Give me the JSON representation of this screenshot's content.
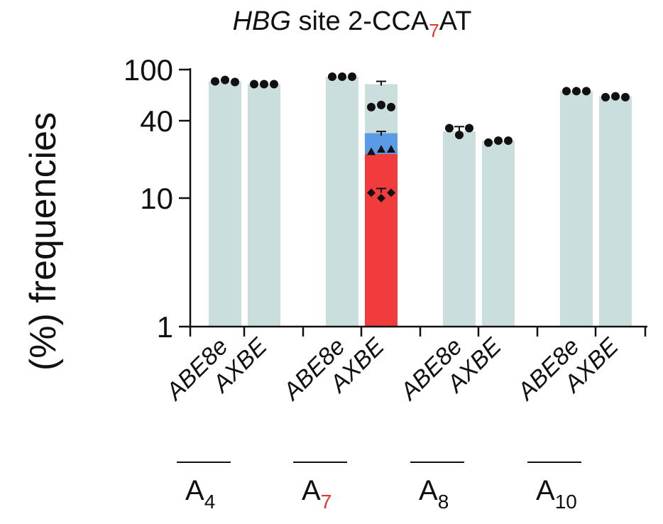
{
  "chart_data": {
    "type": "bar",
    "title_prefix": "HBG",
    "title_main": " site 2-CCA",
    "title_sub": "7",
    "title_suffix": "AT",
    "ylabel": "(%) frequencies",
    "yscale": "log",
    "ylim": [
      1,
      100
    ],
    "yticks": [
      {
        "value": 1,
        "label": "1"
      },
      {
        "value": 10,
        "label": "10"
      },
      {
        "value": 40,
        "label": "40"
      },
      {
        "value": 100,
        "label": "100"
      }
    ],
    "categories": [
      "ABE8e",
      "AXBE",
      "ABE8e",
      "AXBE",
      "ABE8e",
      "AXBE",
      "ABE8e",
      "AXBE"
    ],
    "groups": [
      {
        "base": "A",
        "sub": "4",
        "highlight": false
      },
      {
        "base": "A",
        "sub": "7",
        "highlight": true
      },
      {
        "base": "A",
        "sub": "8",
        "highlight": false
      },
      {
        "base": "A",
        "sub": "10",
        "highlight": false
      }
    ],
    "colors": {
      "bar": "#c9dedd",
      "red": "#f03c3c",
      "blue": "#5b9be6",
      "highlight_text": "#e8302c"
    },
    "bars": [
      {
        "group": 0,
        "label": "ABE8e",
        "value": 81,
        "points": [
          81,
          83,
          80
        ]
      },
      {
        "group": 0,
        "label": "AXBE",
        "value": 77,
        "points": [
          77,
          77,
          77
        ]
      },
      {
        "group": 1,
        "label": "ABE8e",
        "value": 88,
        "points": [
          88,
          88,
          88
        ]
      },
      {
        "group": 1,
        "label": "AXBE",
        "value": 77,
        "err": 81,
        "points": [
          51,
          53,
          51
        ],
        "stack": [
          {
            "name": "red",
            "value": 22,
            "points_triangle": [
              23,
              24,
              24
            ],
            "points_diamond": [
              11,
              10,
              11
            ]
          },
          {
            "name": "blue",
            "value": 32,
            "err": 33
          }
        ]
      },
      {
        "group": 2,
        "label": "ABE8e",
        "value": 33,
        "err": 36,
        "points": [
          35,
          31,
          35
        ]
      },
      {
        "group": 2,
        "label": "AXBE",
        "value": 28,
        "points": [
          27,
          28,
          28
        ]
      },
      {
        "group": 3,
        "label": "ABE8e",
        "value": 68,
        "points": [
          68,
          68,
          68
        ]
      },
      {
        "group": 3,
        "label": "AXBE",
        "value": 62,
        "points": [
          61,
          62,
          61
        ]
      }
    ]
  }
}
